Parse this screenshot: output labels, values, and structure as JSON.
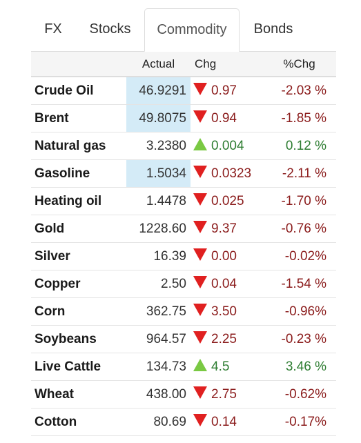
{
  "tabs": [
    {
      "label": "FX"
    },
    {
      "label": "Stocks"
    },
    {
      "label": "Commodity"
    },
    {
      "label": "Bonds"
    }
  ],
  "active_tab": "Commodity",
  "table": {
    "headers": {
      "name": "",
      "actual": "Actual",
      "chg": "Chg",
      "pct": "%Chg"
    },
    "rows": [
      {
        "name": "Crude Oil",
        "actual": "46.9291",
        "chg": "0.97",
        "pct": "-2.03 %",
        "dir": "down",
        "highlight": true
      },
      {
        "name": "Brent",
        "actual": "49.8075",
        "chg": "0.94",
        "pct": "-1.85 %",
        "dir": "down",
        "highlight": true
      },
      {
        "name": "Natural gas",
        "actual": "3.2380",
        "chg": "0.004",
        "pct": "0.12 %",
        "dir": "up",
        "highlight": false
      },
      {
        "name": "Gasoline",
        "actual": "1.5034",
        "chg": "0.0323",
        "pct": "-2.11 %",
        "dir": "down",
        "highlight": true
      },
      {
        "name": "Heating oil",
        "actual": "1.4478",
        "chg": "0.025",
        "pct": "-1.70 %",
        "dir": "down",
        "highlight": false
      },
      {
        "name": "Gold",
        "actual": "1228.60",
        "chg": "9.37",
        "pct": "-0.76 %",
        "dir": "down",
        "highlight": false
      },
      {
        "name": "Silver",
        "actual": "16.39",
        "chg": "0.00",
        "pct": "-0.02%",
        "dir": "down",
        "highlight": false
      },
      {
        "name": "Copper",
        "actual": "2.50",
        "chg": "0.04",
        "pct": "-1.54 %",
        "dir": "down",
        "highlight": false
      },
      {
        "name": "Corn",
        "actual": "362.75",
        "chg": "3.50",
        "pct": "-0.96%",
        "dir": "down",
        "highlight": false
      },
      {
        "name": "Soybeans",
        "actual": "964.57",
        "chg": "2.25",
        "pct": "-0.23 %",
        "dir": "down",
        "highlight": false
      },
      {
        "name": "Live Cattle",
        "actual": "134.73",
        "chg": "4.5",
        "pct": "3.46 %",
        "dir": "up",
        "highlight": false
      },
      {
        "name": "Wheat",
        "actual": "438.00",
        "chg": "2.75",
        "pct": "-0.62%",
        "dir": "down",
        "highlight": false
      },
      {
        "name": "Cotton",
        "actual": "80.69",
        "chg": "0.14",
        "pct": "-0.17%",
        "dir": "down",
        "highlight": false
      }
    ]
  },
  "colors": {
    "down": "#e02020",
    "up": "#7ac943",
    "highlight": "#d4ebf7"
  }
}
